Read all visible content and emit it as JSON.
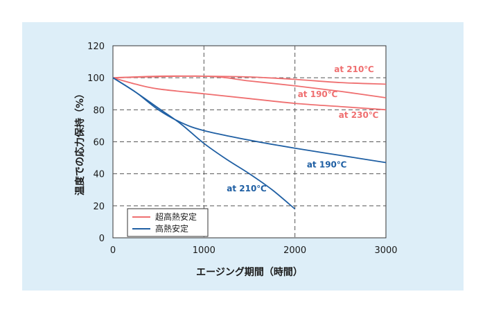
{
  "chart_data": {
    "type": "line",
    "title": "",
    "xlabel": "エージング期間（時間）",
    "ylabel": "温度での応力保持（%）",
    "xlim": [
      0,
      3000
    ],
    "ylim": [
      0,
      120
    ],
    "x_ticks": [
      0,
      1000,
      2000,
      3000
    ],
    "y_ticks": [
      0,
      20,
      40,
      60,
      80,
      100,
      120
    ],
    "grid": "dashed at x=1000,2000 and y=20,40,60,80,100",
    "colors": {
      "red": "#ef6f70",
      "blue": "#1f5fa3"
    },
    "legend": {
      "position": "bottom-left",
      "entries": [
        {
          "label": "超高熱安定",
          "color": "#ef6f70"
        },
        {
          "label": "高熱安定",
          "color": "#1f5fa3"
        }
      ]
    },
    "series": [
      {
        "name": "超高熱安定 at 210°C",
        "group": "超高熱安定",
        "color": "#ef6f70",
        "label": "at 210℃",
        "x": [
          0,
          500,
          1000,
          1500,
          2000,
          2500,
          3000
        ],
        "y": [
          100,
          101,
          101,
          100.5,
          99,
          97,
          96
        ]
      },
      {
        "name": "超高熱安定 at 190°C",
        "group": "超高熱安定",
        "color": "#ef6f70",
        "label": "at 190℃",
        "x": [
          0,
          1000,
          1500,
          2000,
          2500,
          3000
        ],
        "y": [
          100,
          101,
          98,
          95,
          91.5,
          87.5
        ]
      },
      {
        "name": "超高熱安定 at 230°C",
        "group": "超高熱安定",
        "color": "#ef6f70",
        "label": "at 230℃",
        "x": [
          0,
          250,
          500,
          1000,
          1500,
          2000,
          2500,
          3000
        ],
        "y": [
          100,
          96,
          93,
          90,
          87,
          84,
          82,
          80
        ]
      },
      {
        "name": "高熱安定 at 190°C",
        "group": "高熱安定",
        "color": "#1f5fa3",
        "label": "at 190℃",
        "x": [
          0,
          250,
          500,
          750,
          1000,
          1500,
          2000,
          2500,
          3000
        ],
        "y": [
          100,
          91,
          80,
          72,
          67,
          61,
          56,
          51.5,
          47
        ]
      },
      {
        "name": "高熱安定 at 210°C",
        "group": "高熱安定",
        "color": "#1f5fa3",
        "label": "at 210℃",
        "x": [
          0,
          250,
          500,
          750,
          1000,
          1250,
          1500,
          1750,
          2000
        ],
        "y": [
          100,
          91,
          81,
          71,
          59,
          49,
          40,
          30,
          18
        ]
      }
    ],
    "annotations": [
      {
        "text": "at 210℃",
        "series": 0,
        "color": "#ef6f70",
        "x": 2650,
        "y": 103.5
      },
      {
        "text": "at 190℃",
        "series": 1,
        "color": "#ef6f70",
        "x": 2250,
        "y": 88
      },
      {
        "text": "at 230℃",
        "series": 2,
        "color": "#ef6f70",
        "x": 2700,
        "y": 75
      },
      {
        "text": "at 190℃",
        "series": 3,
        "color": "#1f5fa3",
        "x": 2350,
        "y": 44
      },
      {
        "text": "at 210℃",
        "series": 4,
        "color": "#1f5fa3",
        "x": 1470,
        "y": 29
      }
    ]
  }
}
